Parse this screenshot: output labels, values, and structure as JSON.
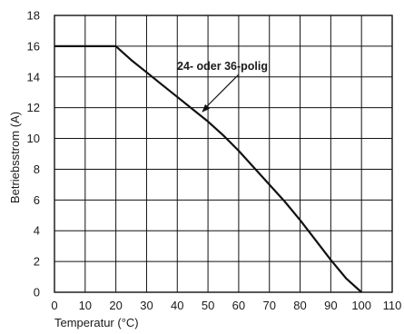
{
  "chart_data": {
    "type": "line",
    "xlabel": "Temperatur (°C)",
    "ylabel": "Betriebsstrom (A)",
    "xlim": [
      0,
      110
    ],
    "ylim": [
      0,
      18
    ],
    "x_ticks": [
      "0",
      "10",
      "20",
      "30",
      "40",
      "50",
      "60",
      "70",
      "80",
      "90",
      "100",
      "110"
    ],
    "y_ticks": [
      "0",
      "2",
      "4",
      "6",
      "8",
      "10",
      "12",
      "14",
      "16",
      "18"
    ],
    "grid": true,
    "annotations": [
      {
        "text": "24- oder 36-polig",
        "points_to": {
          "x": 48,
          "y": 11.7
        }
      }
    ],
    "series": [
      {
        "x": [
          0,
          20,
          25,
          30,
          35,
          40,
          45,
          50,
          55,
          60,
          65,
          70,
          75,
          80,
          85,
          90,
          95,
          100
        ],
        "y": [
          16,
          16,
          15.1,
          14.3,
          13.5,
          12.7,
          11.9,
          11.1,
          10.2,
          9.2,
          8.1,
          7.0,
          5.9,
          4.7,
          3.4,
          2.1,
          0.9,
          0
        ]
      }
    ]
  }
}
